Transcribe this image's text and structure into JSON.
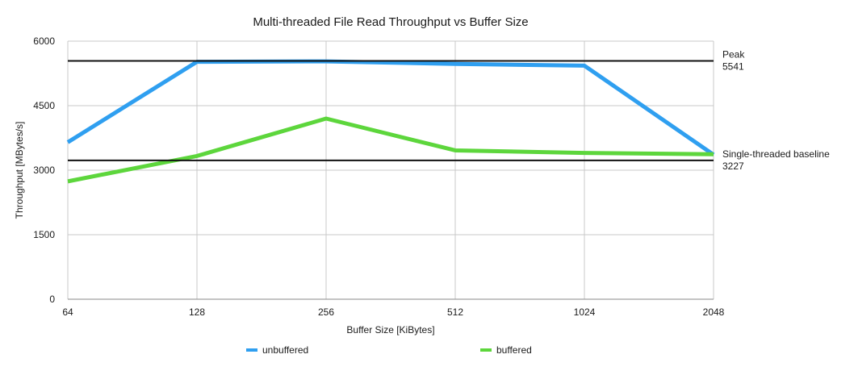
{
  "chart_data": {
    "type": "line",
    "title": "Multi-threaded File Read Throughput vs Buffer Size",
    "xlabel": "Buffer Size [KiBytes]",
    "ylabel": "Throughput [MBytes/s]",
    "categories": [
      "64",
      "128",
      "256",
      "512",
      "1024",
      "2048"
    ],
    "yticks": [
      "0",
      "1500",
      "3000",
      "4500",
      "6000"
    ],
    "ylim": [
      0,
      6000
    ],
    "grid": true,
    "legend_position": "bottom",
    "series": [
      {
        "name": "unbuffered",
        "color": "#2f9ff0",
        "values": [
          3650,
          5520,
          5530,
          5470,
          5430,
          3360
        ]
      },
      {
        "name": "buffered",
        "color": "#5dd63c",
        "values": [
          2740,
          3330,
          4200,
          3460,
          3400,
          3370
        ]
      }
    ],
    "reference_lines": [
      {
        "value": 5541,
        "label": "Peak",
        "value_label": "5541"
      },
      {
        "value": 3227,
        "label": "Single-threaded baseline",
        "value_label": "3227"
      }
    ]
  }
}
